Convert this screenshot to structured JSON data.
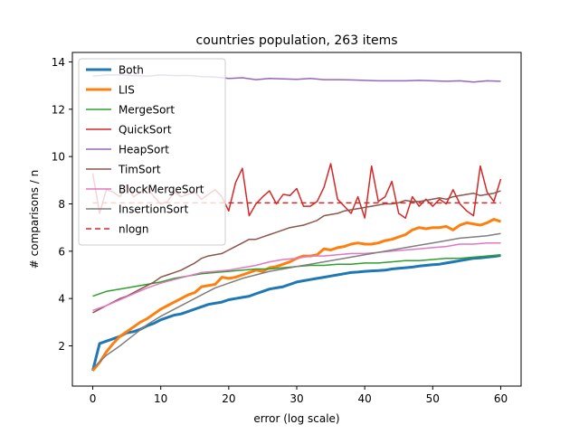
{
  "chart_data": {
    "type": "line",
    "title": "countries population, 263 items",
    "xlabel": "error (log scale)",
    "ylabel": "# comparisons / n",
    "xlim": [
      -3,
      63
    ],
    "ylim": [
      0.3,
      14.4
    ],
    "xticks": [
      0,
      10,
      20,
      30,
      40,
      50,
      60
    ],
    "yticks": [
      2,
      4,
      6,
      8,
      10,
      12,
      14
    ],
    "grid": false,
    "legend_position": "top-left",
    "series": [
      {
        "name": "Both",
        "color": "#1f77b4",
        "width": 3,
        "dash": "",
        "x": [
          0,
          1,
          2,
          3,
          4,
          5,
          6,
          7,
          8,
          9,
          10,
          11,
          12,
          13,
          14,
          15,
          16,
          17,
          18,
          19,
          20,
          21,
          22,
          23,
          24,
          25,
          26,
          27,
          28,
          29,
          30,
          31,
          32,
          33,
          34,
          35,
          36,
          37,
          38,
          39,
          40,
          41,
          42,
          43,
          44,
          45,
          46,
          47,
          48,
          49,
          50,
          51,
          52,
          53,
          54,
          55,
          56,
          57,
          58,
          59,
          60
        ],
        "y": [
          0.95,
          2.1,
          2.2,
          2.3,
          2.4,
          2.55,
          2.6,
          2.7,
          2.85,
          2.95,
          3.1,
          3.2,
          3.3,
          3.35,
          3.45,
          3.55,
          3.65,
          3.75,
          3.8,
          3.85,
          3.95,
          4.0,
          4.05,
          4.1,
          4.2,
          4.3,
          4.4,
          4.45,
          4.5,
          4.6,
          4.7,
          4.75,
          4.8,
          4.85,
          4.9,
          4.95,
          5.0,
          5.05,
          5.1,
          5.12,
          5.15,
          5.17,
          5.18,
          5.2,
          5.25,
          5.28,
          5.3,
          5.33,
          5.37,
          5.4,
          5.43,
          5.45,
          5.5,
          5.55,
          5.6,
          5.65,
          5.7,
          5.72,
          5.75,
          5.78,
          5.82
        ]
      },
      {
        "name": "LIS",
        "color": "#ff7f0e",
        "width": 3,
        "dash": "",
        "x": [
          0,
          1,
          2,
          3,
          4,
          5,
          6,
          7,
          8,
          9,
          10,
          11,
          12,
          13,
          14,
          15,
          16,
          17,
          18,
          19,
          20,
          21,
          22,
          23,
          24,
          25,
          26,
          27,
          28,
          29,
          30,
          31,
          32,
          33,
          34,
          35,
          36,
          37,
          38,
          39,
          40,
          41,
          42,
          43,
          44,
          45,
          46,
          47,
          48,
          49,
          50,
          51,
          52,
          53,
          54,
          55,
          56,
          57,
          58,
          59,
          60
        ],
        "y": [
          0.95,
          1.3,
          1.75,
          2.1,
          2.4,
          2.6,
          2.8,
          3.0,
          3.15,
          3.35,
          3.55,
          3.7,
          3.85,
          4.0,
          4.15,
          4.25,
          4.5,
          4.55,
          4.6,
          4.9,
          4.85,
          4.9,
          5.0,
          5.1,
          5.2,
          5.15,
          5.3,
          5.35,
          5.45,
          5.55,
          5.7,
          5.8,
          5.8,
          5.85,
          6.1,
          6.05,
          6.15,
          6.2,
          6.3,
          6.35,
          6.3,
          6.3,
          6.35,
          6.45,
          6.5,
          6.6,
          6.7,
          6.9,
          7.0,
          6.95,
          7.0,
          7.0,
          7.05,
          6.9,
          7.1,
          7.2,
          7.15,
          7.1,
          7.2,
          7.35,
          7.25
        ]
      },
      {
        "name": "MergeSort",
        "color": "#2ca02c",
        "width": 1.5,
        "dash": "",
        "x": [
          0,
          2,
          4,
          6,
          8,
          10,
          12,
          14,
          16,
          18,
          20,
          22,
          24,
          26,
          28,
          30,
          32,
          34,
          36,
          38,
          40,
          42,
          44,
          46,
          48,
          50,
          52,
          54,
          56,
          58,
          60
        ],
        "y": [
          4.1,
          4.3,
          4.4,
          4.5,
          4.6,
          4.7,
          4.85,
          4.95,
          5.05,
          5.1,
          5.15,
          5.2,
          5.25,
          5.25,
          5.3,
          5.35,
          5.4,
          5.4,
          5.45,
          5.45,
          5.5,
          5.5,
          5.55,
          5.6,
          5.6,
          5.65,
          5.7,
          5.7,
          5.75,
          5.8,
          5.85
        ]
      },
      {
        "name": "QuickSort",
        "color": "#d62728",
        "width": 1.5,
        "dash": "",
        "x": [
          0,
          1,
          2,
          3,
          4,
          5,
          6,
          7,
          8,
          9,
          10,
          11,
          12,
          13,
          14,
          15,
          16,
          17,
          18,
          19,
          20,
          21,
          22,
          23,
          24,
          25,
          26,
          27,
          28,
          29,
          30,
          31,
          32,
          33,
          34,
          35,
          36,
          37,
          38,
          39,
          40,
          41,
          42,
          43,
          44,
          45,
          46,
          47,
          48,
          49,
          50,
          51,
          52,
          53,
          54,
          55,
          56,
          57,
          58,
          59,
          60
        ],
        "y": [
          9.3,
          7.6,
          8.6,
          8.5,
          8.3,
          8.8,
          8.3,
          8.5,
          8.7,
          8.3,
          8.0,
          8.1,
          8.5,
          8.3,
          8.4,
          8.5,
          8.2,
          8.4,
          8.6,
          8.3,
          7.7,
          8.9,
          9.5,
          7.5,
          8.0,
          8.3,
          8.55,
          8.0,
          8.4,
          8.35,
          8.65,
          7.9,
          7.9,
          8.1,
          8.7,
          9.7,
          8.2,
          7.9,
          7.6,
          8.3,
          7.4,
          9.6,
          8.1,
          8.3,
          8.95,
          7.6,
          7.4,
          8.3,
          7.9,
          8.2,
          7.9,
          8.2,
          8.0,
          8.6,
          8.0,
          7.7,
          7.5,
          9.6,
          8.5,
          8.1,
          9.05
        ]
      },
      {
        "name": "HeapSort",
        "color": "#9467bd",
        "width": 1.5,
        "dash": "",
        "x": [
          0,
          2,
          4,
          6,
          8,
          10,
          12,
          14,
          16,
          18,
          20,
          22,
          24,
          26,
          28,
          30,
          32,
          34,
          36,
          38,
          40,
          42,
          44,
          46,
          48,
          50,
          52,
          54,
          56,
          58,
          60
        ],
        "y": [
          13.4,
          13.45,
          13.45,
          13.42,
          13.4,
          13.45,
          13.42,
          13.43,
          13.38,
          13.36,
          13.3,
          13.33,
          13.25,
          13.3,
          13.28,
          13.26,
          13.3,
          13.25,
          13.25,
          13.24,
          13.22,
          13.2,
          13.2,
          13.2,
          13.22,
          13.2,
          13.18,
          13.2,
          13.15,
          13.2,
          13.18
        ]
      },
      {
        "name": "TimSort",
        "color": "#8c564b",
        "width": 1.5,
        "dash": "",
        "x": [
          0,
          1,
          2,
          3,
          4,
          5,
          6,
          7,
          8,
          9,
          10,
          11,
          12,
          13,
          14,
          15,
          16,
          17,
          18,
          19,
          20,
          21,
          22,
          23,
          24,
          25,
          26,
          27,
          28,
          29,
          30,
          31,
          32,
          33,
          34,
          35,
          36,
          37,
          38,
          39,
          40,
          41,
          42,
          43,
          44,
          45,
          46,
          47,
          48,
          49,
          50,
          51,
          52,
          53,
          54,
          55,
          56,
          57,
          58,
          59,
          60
        ],
        "y": [
          3.4,
          3.55,
          3.7,
          3.85,
          4.0,
          4.1,
          4.25,
          4.4,
          4.55,
          4.7,
          4.9,
          5.0,
          5.1,
          5.2,
          5.35,
          5.5,
          5.7,
          5.8,
          5.85,
          5.9,
          6.05,
          6.2,
          6.35,
          6.5,
          6.5,
          6.6,
          6.7,
          6.8,
          6.9,
          7.0,
          7.05,
          7.1,
          7.2,
          7.3,
          7.5,
          7.55,
          7.6,
          7.7,
          7.75,
          7.8,
          7.85,
          7.9,
          7.95,
          8.0,
          8.0,
          8.05,
          8.15,
          8.1,
          8.1,
          8.15,
          8.2,
          8.25,
          8.2,
          8.3,
          8.35,
          8.4,
          8.45,
          8.35,
          8.4,
          8.45,
          8.55
        ]
      },
      {
        "name": "BlockMergeSort",
        "color": "#e377c2",
        "width": 1.5,
        "dash": "",
        "x": [
          0,
          2,
          4,
          6,
          8,
          10,
          12,
          14,
          16,
          18,
          20,
          22,
          24,
          26,
          28,
          30,
          32,
          34,
          36,
          38,
          40,
          42,
          44,
          46,
          48,
          50,
          52,
          54,
          56,
          58,
          60
        ],
        "y": [
          3.5,
          3.7,
          3.95,
          4.2,
          4.45,
          4.65,
          4.8,
          4.95,
          5.1,
          5.15,
          5.2,
          5.3,
          5.4,
          5.55,
          5.65,
          5.7,
          5.8,
          5.8,
          5.85,
          5.9,
          5.9,
          5.95,
          6.0,
          6.05,
          6.1,
          6.15,
          6.2,
          6.3,
          6.3,
          6.35,
          6.35
        ]
      },
      {
        "name": "InsertionSort",
        "color": "#7f7f7f",
        "width": 1.5,
        "dash": "",
        "x": [
          0,
          2,
          4,
          6,
          8,
          10,
          12,
          14,
          16,
          18,
          20,
          22,
          24,
          26,
          28,
          30,
          32,
          34,
          36,
          38,
          40,
          42,
          44,
          46,
          48,
          50,
          52,
          54,
          56,
          58,
          60
        ],
        "y": [
          1.05,
          1.6,
          2.0,
          2.45,
          2.9,
          3.25,
          3.55,
          3.85,
          4.15,
          4.45,
          4.65,
          4.85,
          5.0,
          5.15,
          5.25,
          5.35,
          5.45,
          5.55,
          5.65,
          5.75,
          5.85,
          5.95,
          6.05,
          6.15,
          6.25,
          6.35,
          6.45,
          6.55,
          6.6,
          6.65,
          6.75
        ]
      },
      {
        "name": "nlogn",
        "color": "#d62728",
        "width": 1.5,
        "dash": "6 4",
        "x": [
          0,
          60
        ],
        "y": [
          8.04,
          8.04
        ]
      }
    ]
  }
}
